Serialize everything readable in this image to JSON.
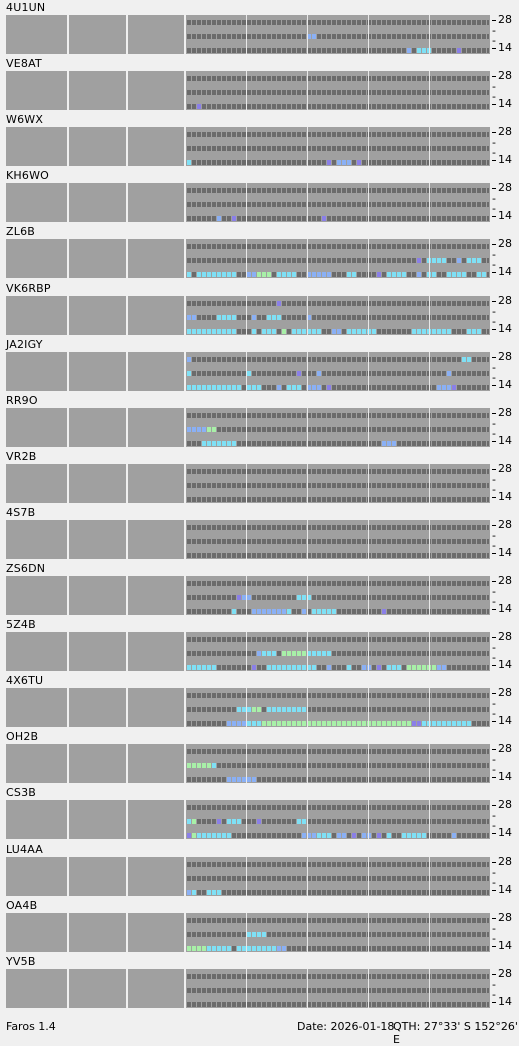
{
  "app": {
    "version": "Faros 1.4"
  },
  "status": {
    "date": "Date: 2026-01-18",
    "qth": "QTH: 27°33' S  152°26' E"
  },
  "scale": {
    "top": "28",
    "bottom": "14",
    "mid": "-"
  },
  "colors": {
    "background": "#f0f0f0",
    "panel": "#a0a0a0",
    "empty_slot": "#6b6b6b",
    "signal_weak": "#8a7fe8",
    "signal_medium": "#8ab0f5",
    "signal_strong": "#7fe0f5",
    "signal_peak": "#a8f0a8"
  },
  "beacons": [
    {
      "callsign": "4U1UN",
      "lanes": [
        [],
        [
          [
            24,
            2,
            1
          ]
        ],
        [
          [
            44,
            1,
            1
          ],
          [
            46,
            3,
            2
          ],
          [
            54,
            1,
            0
          ]
        ]
      ]
    },
    {
      "callsign": "VE8AT",
      "lanes": [
        [],
        [],
        [
          [
            2,
            1,
            0
          ]
        ]
      ]
    },
    {
      "callsign": "W6WX",
      "lanes": [
        [],
        [],
        [
          [
            0,
            1,
            2
          ],
          [
            28,
            1,
            0
          ],
          [
            30,
            3,
            1
          ],
          [
            34,
            1,
            0
          ]
        ]
      ]
    },
    {
      "callsign": "KH6WO",
      "lanes": [
        [],
        [],
        [
          [
            6,
            1,
            1
          ],
          [
            9,
            1,
            0
          ],
          [
            27,
            1,
            0
          ]
        ]
      ]
    },
    {
      "callsign": "ZL6B",
      "lanes": [
        [],
        [
          [
            46,
            1,
            0
          ],
          [
            48,
            4,
            2
          ],
          [
            54,
            1,
            1
          ],
          [
            56,
            3,
            2
          ]
        ],
        [
          [
            0,
            1,
            2
          ],
          [
            2,
            8,
            2
          ],
          [
            12,
            2,
            1
          ],
          [
            14,
            3,
            3
          ],
          [
            18,
            4,
            2
          ],
          [
            24,
            5,
            1
          ],
          [
            32,
            2,
            2
          ],
          [
            38,
            1,
            0
          ],
          [
            40,
            4,
            2
          ],
          [
            46,
            1,
            1
          ],
          [
            48,
            2,
            2
          ],
          [
            52,
            4,
            2
          ],
          [
            58,
            2,
            2
          ]
        ]
      ]
    },
    {
      "callsign": "VK6RBP",
      "lanes": [
        [
          [
            18,
            1,
            0
          ]
        ],
        [
          [
            0,
            2,
            1
          ],
          [
            6,
            4,
            2
          ],
          [
            13,
            1,
            1
          ],
          [
            16,
            3,
            2
          ],
          [
            24,
            1,
            1
          ]
        ],
        [
          [
            0,
            10,
            2
          ],
          [
            13,
            1,
            2
          ],
          [
            15,
            3,
            2
          ],
          [
            19,
            1,
            3
          ],
          [
            21,
            6,
            2
          ],
          [
            29,
            2,
            1
          ],
          [
            32,
            6,
            2
          ],
          [
            45,
            8,
            2
          ],
          [
            56,
            3,
            2
          ]
        ]
      ]
    },
    {
      "callsign": "JA2IGY",
      "lanes": [
        [
          [
            0,
            1,
            1
          ],
          [
            55,
            2,
            2
          ]
        ],
        [
          [
            0,
            1,
            2
          ],
          [
            12,
            1,
            2
          ],
          [
            22,
            1,
            0
          ],
          [
            26,
            1,
            1
          ],
          [
            52,
            1,
            1
          ]
        ],
        [
          [
            0,
            11,
            2
          ],
          [
            12,
            3,
            2
          ],
          [
            18,
            1,
            1
          ],
          [
            20,
            3,
            2
          ],
          [
            24,
            3,
            1
          ],
          [
            28,
            1,
            0
          ],
          [
            50,
            3,
            1
          ],
          [
            53,
            1,
            0
          ]
        ]
      ]
    },
    {
      "callsign": "RR9O",
      "lanes": [
        [],
        [
          [
            0,
            4,
            1
          ],
          [
            4,
            2,
            3
          ]
        ],
        [
          [
            3,
            1,
            2
          ],
          [
            4,
            6,
            2
          ],
          [
            39,
            3,
            1
          ]
        ]
      ]
    },
    {
      "callsign": "VR2B",
      "lanes": [
        [],
        [],
        []
      ]
    },
    {
      "callsign": "4S7B",
      "lanes": [
        [],
        [],
        []
      ]
    },
    {
      "callsign": "ZS6DN",
      "lanes": [
        [],
        [
          [
            10,
            1,
            0
          ],
          [
            11,
            2,
            1
          ],
          [
            22,
            3,
            2
          ]
        ],
        [
          [
            9,
            1,
            2
          ],
          [
            13,
            7,
            1
          ],
          [
            20,
            1,
            2
          ],
          [
            23,
            1,
            1
          ],
          [
            25,
            5,
            2
          ],
          [
            39,
            1,
            0
          ]
        ]
      ]
    },
    {
      "callsign": "5Z4B",
      "lanes": [
        [],
        [
          [
            14,
            1,
            1
          ],
          [
            15,
            3,
            2
          ],
          [
            19,
            5,
            3
          ],
          [
            24,
            5,
            2
          ]
        ],
        [
          [
            0,
            6,
            2
          ],
          [
            13,
            1,
            0
          ],
          [
            16,
            2,
            2
          ],
          [
            18,
            8,
            2
          ],
          [
            28,
            1,
            1
          ],
          [
            32,
            1,
            2
          ],
          [
            35,
            2,
            1
          ],
          [
            38,
            1,
            0
          ],
          [
            40,
            3,
            2
          ],
          [
            44,
            8,
            3
          ],
          [
            50,
            2,
            1
          ]
        ]
      ]
    },
    {
      "callsign": "4X6TU",
      "lanes": [
        [],
        [
          [
            10,
            3,
            2
          ],
          [
            13,
            2,
            3
          ],
          [
            16,
            8,
            2
          ]
        ],
        [
          [
            8,
            4,
            1
          ],
          [
            12,
            3,
            2
          ],
          [
            15,
            10,
            3
          ],
          [
            25,
            20,
            3
          ],
          [
            45,
            2,
            0
          ],
          [
            47,
            10,
            2
          ]
        ]
      ]
    },
    {
      "callsign": "OH2B",
      "lanes": [
        [],
        [
          [
            0,
            5,
            3
          ],
          [
            5,
            1,
            2
          ]
        ],
        [
          [
            8,
            6,
            1
          ]
        ]
      ]
    },
    {
      "callsign": "CS3B",
      "lanes": [
        [],
        [
          [
            0,
            1,
            2
          ],
          [
            1,
            1,
            3
          ],
          [
            6,
            1,
            0
          ],
          [
            8,
            3,
            2
          ],
          [
            14,
            1,
            0
          ],
          [
            22,
            2,
            2
          ]
        ],
        [
          [
            0,
            1,
            0
          ],
          [
            1,
            1,
            3
          ],
          [
            2,
            7,
            2
          ],
          [
            23,
            3,
            1
          ],
          [
            26,
            3,
            2
          ],
          [
            30,
            2,
            1
          ],
          [
            33,
            1,
            0
          ],
          [
            35,
            2,
            1
          ],
          [
            38,
            1,
            0
          ],
          [
            40,
            1,
            2
          ],
          [
            43,
            5,
            2
          ],
          [
            53,
            1,
            1
          ]
        ]
      ]
    },
    {
      "callsign": "LU4AA",
      "lanes": [
        [],
        [],
        [
          [
            0,
            1,
            1
          ],
          [
            1,
            1,
            2
          ],
          [
            4,
            3,
            2
          ]
        ]
      ]
    },
    {
      "callsign": "OA4B",
      "lanes": [
        [],
        [
          [
            12,
            4,
            2
          ]
        ],
        [
          [
            0,
            4,
            3
          ],
          [
            4,
            5,
            2
          ],
          [
            10,
            8,
            2
          ],
          [
            18,
            2,
            1
          ]
        ]
      ]
    },
    {
      "callsign": "YV5B",
      "lanes": [
        [],
        [],
        []
      ]
    }
  ]
}
